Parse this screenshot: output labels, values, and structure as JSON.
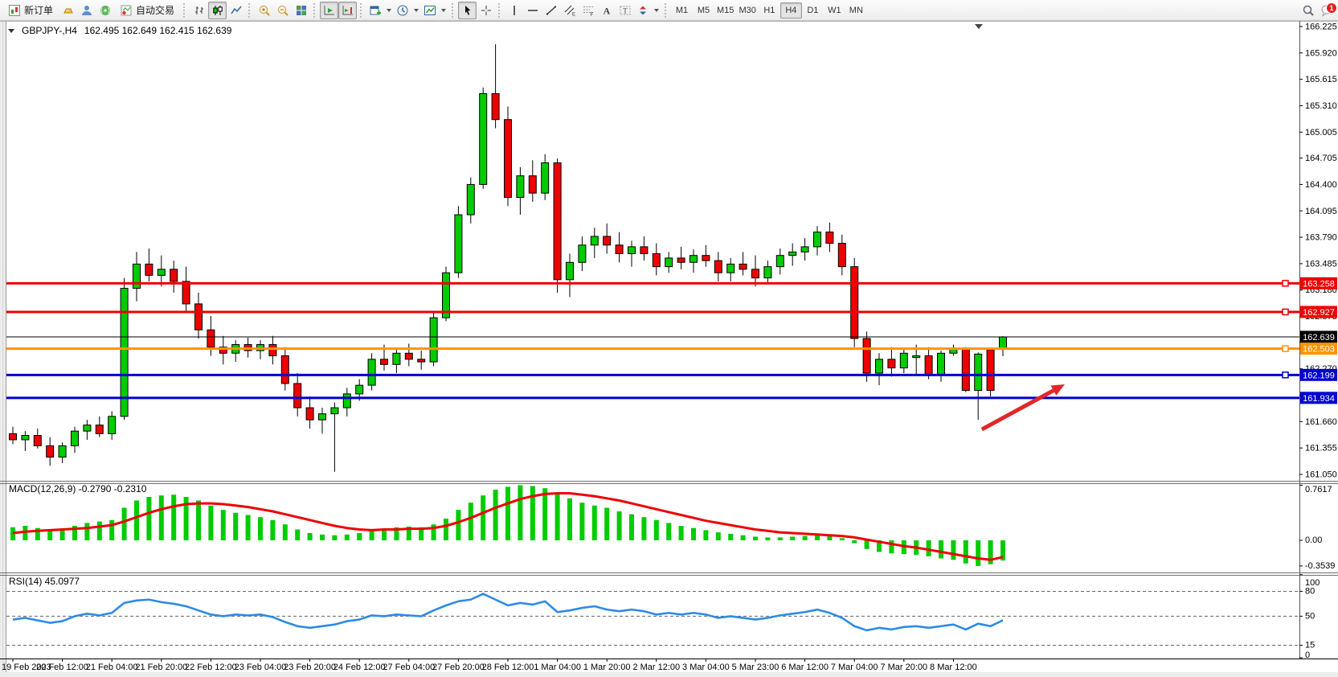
{
  "toolbar": {
    "new_order_label": "新订单",
    "autotrading_label": "自动交易",
    "timeframes": [
      "M1",
      "M5",
      "M15",
      "M30",
      "H1",
      "H4",
      "D1",
      "W1",
      "MN"
    ],
    "active_timeframe": "H4",
    "notification_badge": "1",
    "text_tool_label": "A",
    "label_tool_label": "T",
    "channel_sub": "E",
    "fibo_sub": "F",
    "icons": {
      "new_order": "document-chart",
      "deposit": "gold-bar",
      "community": "person",
      "signals": "broadcast",
      "chart_bars": "ohlc-bars",
      "chart_candles": "candlestick",
      "chart_line": "line-chart",
      "zoom_in": "magnifier-plus",
      "zoom_out": "magnifier-minus",
      "tile_windows": "grid",
      "auto_scroll": "chart-arrow-right",
      "chart_shift": "chart-shift",
      "new_chart": "window-plus",
      "periods": "clock",
      "templates": "chart-template",
      "cursor": "pointer",
      "crosshair": "crosshair",
      "vline": "vertical-line",
      "hline": "horizontal-line",
      "trendline": "diagonal-line",
      "channel": "parallel-lines",
      "fibonacci": "fibo-lines",
      "shapes": "arrows",
      "search": "magnifier",
      "notifications": "speech-bubble",
      "collapse": "triangle-down"
    }
  },
  "chart_data": [
    {
      "type": "candlestick",
      "symbol_period": "GBPJPY-,H4",
      "ohlc_text": "162.495 162.649 162.415 162.639",
      "grid": false,
      "up_color": "#00CC00",
      "down_color": "#EE0000",
      "ylim": [
        161.05,
        166.225
      ],
      "yticks": [
        "166.225",
        "165.920",
        "165.615",
        "165.310",
        "165.005",
        "164.705",
        "164.400",
        "164.095",
        "163.790",
        "163.485",
        "163.180",
        "162.875",
        "162.575",
        "162.270",
        "161.965",
        "161.660",
        "161.355",
        "161.050"
      ],
      "x_tick_labels": [
        "19 Feb 2023",
        "20 Feb 12:00",
        "21 Feb 04:00",
        "21 Feb 20:00",
        "22 Feb 12:00",
        "23 Feb 04:00",
        "23 Feb 20:00",
        "24 Feb 12:00",
        "27 Feb 04:00",
        "27 Feb 20:00",
        "28 Feb 12:00",
        "1 Mar 04:00",
        "1 Mar 20:00",
        "2 Mar 12:00",
        "3 Mar 04:00",
        "5 Mar 23:00",
        "6 Mar 12:00",
        "7 Mar 04:00",
        "7 Mar 20:00",
        "8 Mar 12:00"
      ],
      "x_tick_indices": [
        0,
        4,
        8,
        12,
        16,
        20,
        24,
        28,
        32,
        36,
        40,
        44,
        48,
        52,
        56,
        60,
        64,
        68,
        72,
        76
      ],
      "candles": {
        "open": [
          161.52,
          161.45,
          161.5,
          161.38,
          161.25,
          161.38,
          161.55,
          161.62,
          161.52,
          161.72,
          163.2,
          163.48,
          163.35,
          163.42,
          163.28,
          163.02,
          162.72,
          162.52,
          162.45,
          162.55,
          162.48,
          162.55,
          162.42,
          162.1,
          161.82,
          161.68,
          161.75,
          161.82,
          161.98,
          162.08,
          162.38,
          162.32,
          162.45,
          162.38,
          162.35,
          162.86,
          163.38,
          164.05,
          164.4,
          165.45,
          165.15,
          164.25,
          164.5,
          164.3,
          164.65,
          163.3,
          163.5,
          163.7,
          163.8,
          163.7,
          163.6,
          163.68,
          163.6,
          163.45,
          163.55,
          163.5,
          163.58,
          163.52,
          163.38,
          163.48,
          163.42,
          163.32,
          163.45,
          163.58,
          163.62,
          163.68,
          163.85,
          163.72,
          163.45,
          162.62,
          162.22,
          162.38,
          162.28,
          162.4,
          162.42,
          162.2,
          162.45,
          162.5,
          162.02,
          162.49,
          162.495
        ],
        "high": [
          161.6,
          161.55,
          161.58,
          161.48,
          161.42,
          161.6,
          161.68,
          161.72,
          161.78,
          163.32,
          163.62,
          163.66,
          163.58,
          163.52,
          163.45,
          163.15,
          162.88,
          162.65,
          162.6,
          162.63,
          162.6,
          162.65,
          162.52,
          162.22,
          161.95,
          161.82,
          161.88,
          162.05,
          162.15,
          162.45,
          162.55,
          162.5,
          162.56,
          162.48,
          162.92,
          163.45,
          164.15,
          164.48,
          165.52,
          166.02,
          165.3,
          164.6,
          164.68,
          164.75,
          164.7,
          163.6,
          163.8,
          163.9,
          163.95,
          163.85,
          163.75,
          163.8,
          163.72,
          163.62,
          163.68,
          163.65,
          163.7,
          163.62,
          163.55,
          163.62,
          163.58,
          163.52,
          163.66,
          163.72,
          163.78,
          163.92,
          163.96,
          163.82,
          163.55,
          162.7,
          162.45,
          162.52,
          162.5,
          162.55,
          162.52,
          162.48,
          162.55,
          162.52,
          162.46,
          162.5,
          162.649
        ],
        "low": [
          161.4,
          161.32,
          161.35,
          161.15,
          161.18,
          161.3,
          161.45,
          161.48,
          161.45,
          161.68,
          163.05,
          163.28,
          163.22,
          163.15,
          162.92,
          162.62,
          162.42,
          162.32,
          162.35,
          162.4,
          162.38,
          162.32,
          162.02,
          161.72,
          161.58,
          161.52,
          161.08,
          161.72,
          161.9,
          162.02,
          162.25,
          162.22,
          162.3,
          162.26,
          162.3,
          162.82,
          163.32,
          163.95,
          164.35,
          165.05,
          164.15,
          164.05,
          164.2,
          164.22,
          163.15,
          163.1,
          163.4,
          163.55,
          163.6,
          163.5,
          163.45,
          163.52,
          163.35,
          163.38,
          163.42,
          163.38,
          163.45,
          163.28,
          163.28,
          163.35,
          163.22,
          163.26,
          163.36,
          163.46,
          163.52,
          163.58,
          163.62,
          163.35,
          162.52,
          162.12,
          162.08,
          162.18,
          162.22,
          162.19,
          162.15,
          162.12,
          162.42,
          162.0,
          161.68,
          161.95,
          162.415
        ],
        "close": [
          161.45,
          161.5,
          161.38,
          161.25,
          161.38,
          161.55,
          161.62,
          161.52,
          161.72,
          163.2,
          163.48,
          163.35,
          163.42,
          163.28,
          163.02,
          162.72,
          162.52,
          162.45,
          162.55,
          162.48,
          162.55,
          162.42,
          162.1,
          161.82,
          161.68,
          161.75,
          161.82,
          161.98,
          162.08,
          162.38,
          162.32,
          162.45,
          162.38,
          162.35,
          162.86,
          163.38,
          164.05,
          164.4,
          165.45,
          165.15,
          164.25,
          164.5,
          164.3,
          164.65,
          163.3,
          163.5,
          163.7,
          163.8,
          163.7,
          163.6,
          163.68,
          163.6,
          163.45,
          163.55,
          163.5,
          163.58,
          163.52,
          163.38,
          163.48,
          163.42,
          163.32,
          163.45,
          163.58,
          163.62,
          163.68,
          163.85,
          163.72,
          163.45,
          162.62,
          162.22,
          162.38,
          162.28,
          162.45,
          162.42,
          162.2,
          162.45,
          162.5,
          162.02,
          162.44,
          162.02,
          162.639
        ]
      },
      "hlines": [
        {
          "price": 163.258,
          "label": "163.258",
          "color": "#EE0000",
          "width": 3,
          "handle": true
        },
        {
          "price": 162.927,
          "label": "162.927",
          "color": "#EE0000",
          "width": 3,
          "handle": true
        },
        {
          "price": 162.639,
          "label": "162.639",
          "color": "#000000",
          "width": 1,
          "handle": false,
          "role": "bid-price-line"
        },
        {
          "price": 162.503,
          "label": "162.503",
          "color": "#FF9400",
          "width": 3,
          "handle": true
        },
        {
          "price": 162.199,
          "label": "162.199",
          "color": "#0000D0",
          "width": 3,
          "handle": true
        },
        {
          "price": 161.934,
          "label": "161.934",
          "color": "#0000D0",
          "width": 3,
          "handle": false
        }
      ],
      "arrow": {
        "bar_from": 78.3,
        "price_from": 161.57,
        "bar_to": 85.0,
        "price_to": 162.09,
        "color": "#E02828"
      }
    },
    {
      "type": "bar",
      "name": "MACD",
      "label": "MACD(12,26,9) -0.2790 -0.2310",
      "yticks": [
        "0.7617",
        "0.00",
        "-0.3539"
      ],
      "ytick_values": [
        0.7617,
        0,
        -0.3539
      ],
      "hist_color": "#00CC00",
      "signal_color": "#EE0000",
      "histogram": [
        0.18,
        0.2,
        0.17,
        0.15,
        0.16,
        0.2,
        0.24,
        0.26,
        0.28,
        0.45,
        0.55,
        0.6,
        0.62,
        0.63,
        0.6,
        0.55,
        0.48,
        0.42,
        0.38,
        0.35,
        0.32,
        0.28,
        0.22,
        0.15,
        0.1,
        0.08,
        0.07,
        0.08,
        0.1,
        0.14,
        0.16,
        0.18,
        0.19,
        0.18,
        0.22,
        0.3,
        0.42,
        0.52,
        0.62,
        0.7,
        0.74,
        0.7617,
        0.75,
        0.72,
        0.65,
        0.58,
        0.52,
        0.48,
        0.45,
        0.4,
        0.36,
        0.32,
        0.28,
        0.24,
        0.2,
        0.17,
        0.14,
        0.11,
        0.09,
        0.07,
        0.05,
        0.04,
        0.04,
        0.05,
        0.06,
        0.07,
        0.06,
        0.03,
        -0.04,
        -0.12,
        -0.16,
        -0.18,
        -0.19,
        -0.2,
        -0.22,
        -0.25,
        -0.27,
        -0.32,
        -0.3539,
        -0.33,
        -0.279
      ],
      "signal": [
        0.1,
        0.12,
        0.13,
        0.14,
        0.15,
        0.16,
        0.17,
        0.19,
        0.21,
        0.26,
        0.32,
        0.38,
        0.43,
        0.47,
        0.5,
        0.51,
        0.51,
        0.5,
        0.48,
        0.46,
        0.43,
        0.4,
        0.36,
        0.32,
        0.28,
        0.24,
        0.2,
        0.17,
        0.15,
        0.14,
        0.15,
        0.15,
        0.16,
        0.16,
        0.17,
        0.2,
        0.25,
        0.31,
        0.38,
        0.45,
        0.51,
        0.57,
        0.61,
        0.64,
        0.65,
        0.65,
        0.63,
        0.61,
        0.58,
        0.55,
        0.51,
        0.47,
        0.43,
        0.39,
        0.35,
        0.31,
        0.27,
        0.24,
        0.21,
        0.18,
        0.15,
        0.13,
        0.11,
        0.1,
        0.09,
        0.08,
        0.07,
        0.06,
        0.04,
        0.01,
        -0.02,
        -0.05,
        -0.08,
        -0.1,
        -0.13,
        -0.16,
        -0.19,
        -0.22,
        -0.25,
        -0.27,
        -0.231
      ]
    },
    {
      "type": "line",
      "name": "RSI",
      "label": "RSI(14) 45.0977",
      "ylim": [
        0,
        100
      ],
      "yticks": [
        "100",
        "80",
        "50",
        "15",
        "0"
      ],
      "ytick_values": [
        100,
        80,
        50,
        15,
        0
      ],
      "levels": [
        80,
        50,
        15
      ],
      "line_color": "#2E8BE6",
      "values": [
        46,
        48,
        45,
        42,
        44,
        50,
        53,
        51,
        54,
        66,
        69,
        70,
        67,
        65,
        62,
        57,
        52,
        50,
        52,
        51,
        52,
        49,
        43,
        38,
        36,
        38,
        40,
        44,
        46,
        51,
        50,
        52,
        51,
        50,
        57,
        63,
        68,
        70,
        77,
        70,
        63,
        66,
        64,
        68,
        55,
        57,
        60,
        62,
        58,
        56,
        58,
        56,
        52,
        54,
        52,
        54,
        52,
        48,
        50,
        48,
        46,
        48,
        51,
        53,
        55,
        58,
        54,
        48,
        38,
        33,
        36,
        34,
        37,
        38,
        36,
        38,
        40,
        34,
        41,
        38,
        45.0977
      ]
    }
  ]
}
